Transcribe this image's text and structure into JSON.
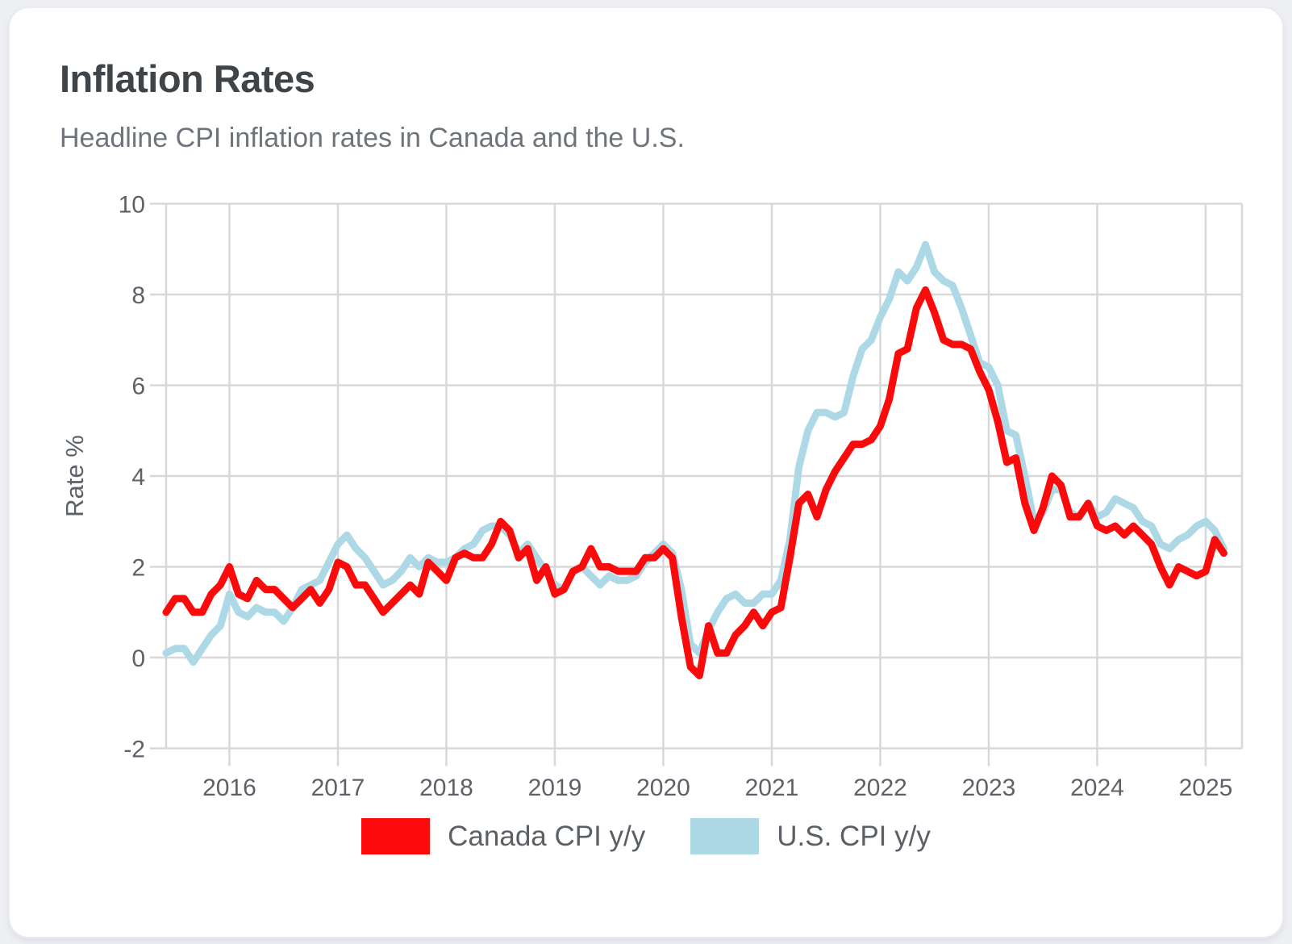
{
  "card": {
    "title": "Inflation Rates",
    "subtitle": "Headline CPI inflation rates in Canada and the U.S."
  },
  "chart_data": {
    "type": "line",
    "title": "Inflation Rates",
    "subtitle": "Headline CPI inflation rates in Canada and the U.S.",
    "xlabel": "",
    "ylabel": "Rate %",
    "x_start": "2015-06",
    "x_end": "2025-03",
    "x_frequency": "monthly",
    "xticks": [
      2016,
      2017,
      2018,
      2019,
      2020,
      2021,
      2022,
      2023,
      2024,
      2025
    ],
    "yticks": [
      -2,
      0,
      2,
      4,
      6,
      8,
      10
    ],
    "ylim": [
      -2,
      10
    ],
    "grid": true,
    "legend_position": "bottom-center",
    "grid_color": "#d8d8d8",
    "series": [
      {
        "name": "Canada CPI y/y",
        "color": "#fa0a0a",
        "values": [
          1.0,
          1.3,
          1.3,
          1.0,
          1.0,
          1.4,
          1.6,
          2.0,
          1.4,
          1.3,
          1.7,
          1.5,
          1.5,
          1.3,
          1.1,
          1.3,
          1.5,
          1.2,
          1.5,
          2.1,
          2.0,
          1.6,
          1.6,
          1.3,
          1.0,
          1.2,
          1.4,
          1.6,
          1.4,
          2.1,
          1.9,
          1.7,
          2.2,
          2.3,
          2.2,
          2.2,
          2.5,
          3.0,
          2.8,
          2.2,
          2.4,
          1.7,
          2.0,
          1.4,
          1.5,
          1.9,
          2.0,
          2.4,
          2.0,
          2.0,
          1.9,
          1.9,
          1.9,
          2.2,
          2.2,
          2.4,
          2.2,
          0.9,
          -0.2,
          -0.4,
          0.7,
          0.1,
          0.1,
          0.5,
          0.7,
          1.0,
          0.7,
          1.0,
          1.1,
          2.2,
          3.4,
          3.6,
          3.1,
          3.7,
          4.1,
          4.4,
          4.7,
          4.7,
          4.8,
          5.1,
          5.7,
          6.7,
          6.8,
          7.7,
          8.1,
          7.6,
          7.0,
          6.9,
          6.9,
          6.8,
          6.3,
          5.9,
          5.2,
          4.3,
          4.4,
          3.4,
          2.8,
          3.3,
          4.0,
          3.8,
          3.1,
          3.1,
          3.4,
          2.9,
          2.8,
          2.9,
          2.7,
          2.9,
          2.7,
          2.5,
          2.0,
          1.6,
          2.0,
          1.9,
          1.8,
          1.9,
          2.6,
          2.3
        ]
      },
      {
        "name": "U.S. CPI y/y",
        "color": "#add8e6",
        "values": [
          0.1,
          0.2,
          0.2,
          -0.1,
          0.2,
          0.5,
          0.7,
          1.4,
          1.0,
          0.9,
          1.1,
          1.0,
          1.0,
          0.8,
          1.1,
          1.5,
          1.6,
          1.7,
          2.1,
          2.5,
          2.7,
          2.4,
          2.2,
          1.9,
          1.6,
          1.7,
          1.9,
          2.2,
          2.0,
          2.2,
          2.1,
          2.1,
          2.2,
          2.4,
          2.5,
          2.8,
          2.9,
          2.9,
          2.7,
          2.3,
          2.5,
          2.2,
          1.9,
          1.6,
          1.5,
          1.9,
          2.0,
          1.8,
          1.6,
          1.8,
          1.7,
          1.7,
          1.8,
          2.1,
          2.3,
          2.5,
          2.3,
          1.5,
          0.3,
          0.1,
          0.6,
          1.0,
          1.3,
          1.4,
          1.2,
          1.2,
          1.4,
          1.4,
          1.7,
          2.6,
          4.2,
          5.0,
          5.4,
          5.4,
          5.3,
          5.4,
          6.2,
          6.8,
          7.0,
          7.5,
          7.9,
          8.5,
          8.3,
          8.6,
          9.1,
          8.5,
          8.3,
          8.2,
          7.7,
          7.1,
          6.5,
          6.4,
          6.0,
          5.0,
          4.9,
          4.0,
          3.0,
          3.2,
          3.7,
          3.7,
          3.2,
          3.1,
          3.4,
          3.1,
          3.2,
          3.5,
          3.4,
          3.3,
          3.0,
          2.9,
          2.5,
          2.4,
          2.6,
          2.7,
          2.9,
          3.0,
          2.8,
          2.4
        ]
      }
    ]
  },
  "legend": {
    "items": [
      {
        "label": "Canada CPI y/y",
        "color": "#fa0a0a"
      },
      {
        "label": "U.S. CPI y/y",
        "color": "#add8e6"
      }
    ]
  }
}
